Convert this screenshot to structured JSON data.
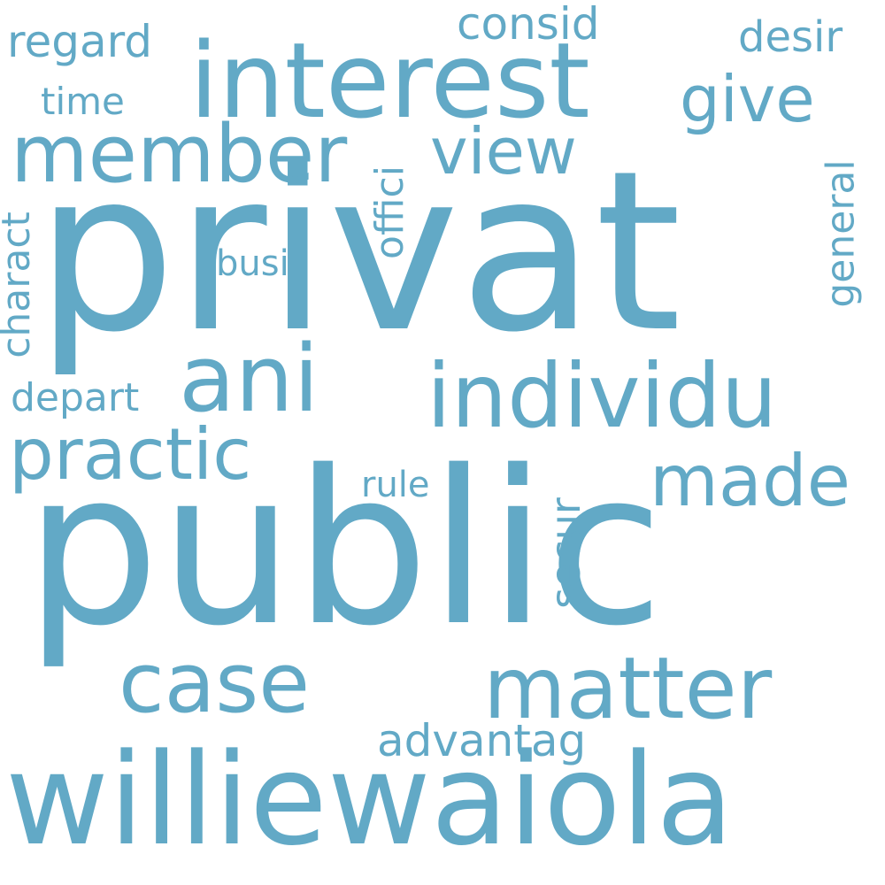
{
  "cloud": {
    "color": "#62a9c6",
    "background": "#ffffff",
    "words": [
      {
        "text": "public",
        "rotated": false
      },
      {
        "text": "privat",
        "rotated": false
      },
      {
        "text": "williewaiola",
        "rotated": false
      },
      {
        "text": "interest",
        "rotated": false
      },
      {
        "text": "individu",
        "rotated": false
      },
      {
        "text": "ani",
        "rotated": false
      },
      {
        "text": "member",
        "rotated": false
      },
      {
        "text": "matter",
        "rotated": false
      },
      {
        "text": "case",
        "rotated": false
      },
      {
        "text": "practic",
        "rotated": false
      },
      {
        "text": "made",
        "rotated": false
      },
      {
        "text": "view",
        "rotated": false
      },
      {
        "text": "give",
        "rotated": false
      },
      {
        "text": "advantag",
        "rotated": false
      },
      {
        "text": "consid",
        "rotated": false
      },
      {
        "text": "regard",
        "rotated": false
      },
      {
        "text": "desir",
        "rotated": false
      },
      {
        "text": "time",
        "rotated": false
      },
      {
        "text": "depart",
        "rotated": false
      },
      {
        "text": "busi",
        "rotated": false
      },
      {
        "text": "rule",
        "rotated": false
      },
      {
        "text": "offici",
        "rotated": true
      },
      {
        "text": "charact",
        "rotated": true
      },
      {
        "text": "general",
        "rotated": true
      },
      {
        "text": "secur",
        "rotated": true
      }
    ]
  }
}
